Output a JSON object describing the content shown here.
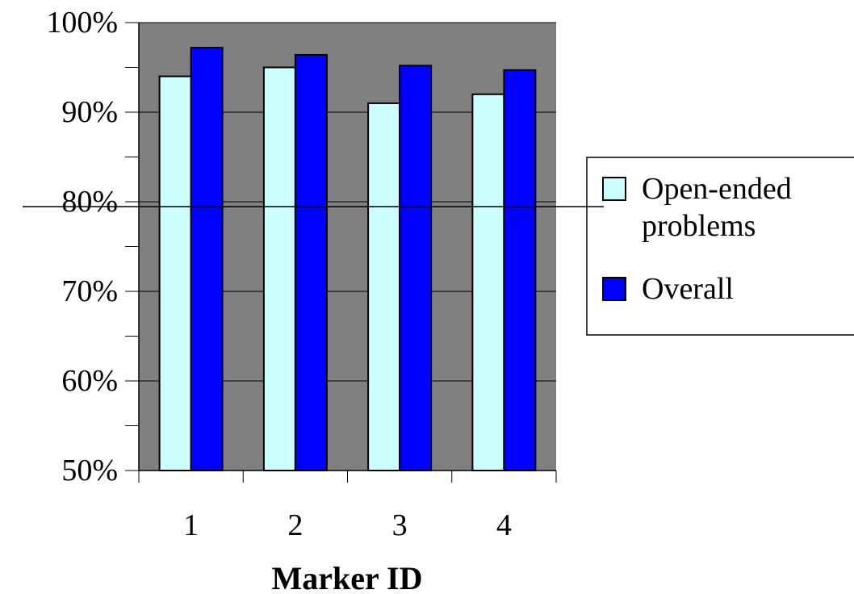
{
  "chart_data": {
    "type": "bar",
    "categories": [
      "1",
      "2",
      "3",
      "4"
    ],
    "series": [
      {
        "name": "Open-ended problems",
        "values": [
          94,
          95,
          91,
          92
        ],
        "color": "#ccffff"
      },
      {
        "name": "Overall",
        "values": [
          97.2,
          96.4,
          95.2,
          94.7
        ],
        "color": "#0000ff"
      }
    ],
    "xlabel": "Marker ID",
    "ylabel": "",
    "ylim": [
      50,
      100
    ],
    "yticks": [
      "50%",
      "60%",
      "70%",
      "80%",
      "90%",
      "100%"
    ],
    "ytick_values": [
      50,
      60,
      70,
      80,
      90,
      100
    ],
    "grid": true,
    "plot_background": "#808080",
    "legend": {
      "position": "right",
      "items": [
        {
          "lines": [
            "Open-ended",
            "problems"
          ],
          "color": "#ccffff"
        },
        {
          "lines": [
            "Overall"
          ],
          "color": "#0000ff"
        }
      ]
    }
  }
}
